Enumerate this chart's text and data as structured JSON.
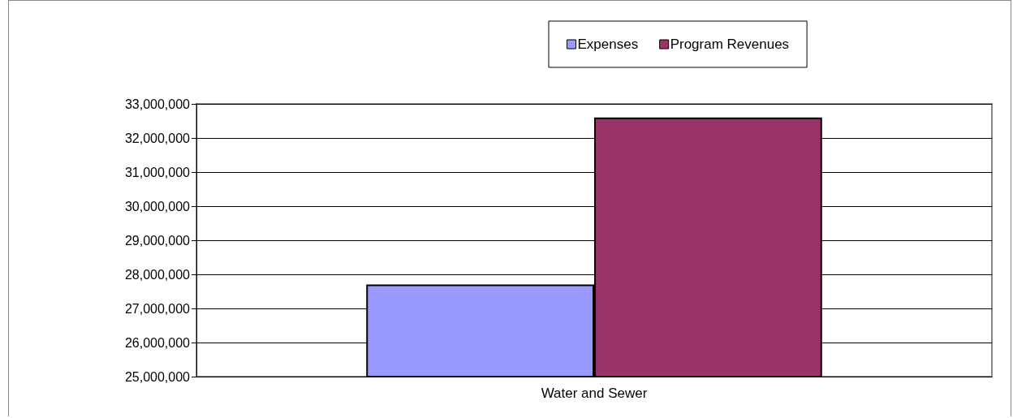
{
  "chart_data": {
    "type": "bar",
    "categories": [
      "Water and Sewer"
    ],
    "series": [
      {
        "name": "Expenses",
        "color": "#9999ff",
        "values": [
          27700000
        ]
      },
      {
        "name": "Program Revenues",
        "color": "#993366",
        "values": [
          32600000
        ]
      }
    ],
    "ylim": [
      25000000,
      33000000
    ],
    "yticks": [
      {
        "value": 25000000,
        "label": "25,000,000"
      },
      {
        "value": 26000000,
        "label": "26,000,000"
      },
      {
        "value": 27000000,
        "label": "27,000,000"
      },
      {
        "value": 28000000,
        "label": "28,000,000"
      },
      {
        "value": 29000000,
        "label": "29,000,000"
      },
      {
        "value": 30000000,
        "label": "30,000,000"
      },
      {
        "value": 31000000,
        "label": "31,000,000"
      },
      {
        "value": 32000000,
        "label": "32,000,000"
      },
      {
        "value": 33000000,
        "label": "33,000,000"
      }
    ],
    "grid": "y",
    "legend": "top right"
  }
}
